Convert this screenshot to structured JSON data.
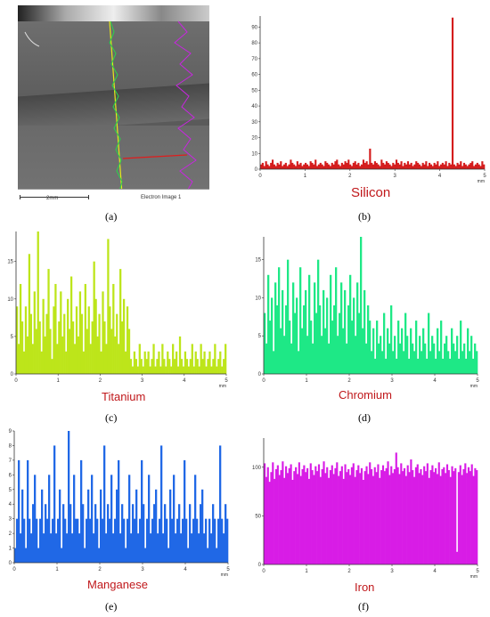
{
  "panels": {
    "a": {
      "caption": "(a)",
      "scale_label": "2mm",
      "image_label": "Electron Image 1"
    },
    "b": {
      "caption": "(b)",
      "element": "Silicon"
    },
    "c": {
      "caption": "(c)",
      "element": "Titanium"
    },
    "d": {
      "caption": "(d)",
      "element": "Chromium"
    },
    "e": {
      "caption": "(e)",
      "element": "Manganese"
    },
    "f": {
      "caption": "(f)",
      "element": "Iron"
    }
  },
  "chart_data": [
    {
      "id": "b",
      "type": "bar",
      "xlabel": "mm",
      "color": "#d41c1c",
      "xlim": [
        0,
        5
      ],
      "ylim": [
        0,
        97
      ],
      "xticks": [
        0,
        1,
        2,
        3,
        4,
        5
      ],
      "yticks": [
        0,
        10,
        20,
        30,
        40,
        50,
        60,
        70,
        80,
        90
      ],
      "values": [
        3,
        4,
        2,
        5,
        3,
        2,
        4,
        6,
        3,
        2,
        4,
        3,
        5,
        2,
        3,
        4,
        2,
        3,
        6,
        4,
        3,
        2,
        5,
        3,
        4,
        2,
        3,
        4,
        3,
        2,
        5,
        4,
        3,
        6,
        2,
        3,
        4,
        3,
        2,
        5,
        4,
        3,
        2,
        4,
        3,
        5,
        6,
        3,
        2,
        4,
        3,
        5,
        4,
        6,
        3,
        2,
        4,
        5,
        3,
        4,
        2,
        3,
        6,
        4,
        5,
        3,
        13,
        4,
        3,
        5,
        4,
        3,
        2,
        6,
        4,
        3,
        5,
        4,
        3,
        2,
        4,
        3,
        6,
        4,
        3,
        5,
        2,
        4,
        3,
        5,
        3,
        4,
        2,
        3,
        5,
        4,
        3,
        2,
        4,
        3,
        5,
        2,
        4,
        3,
        2,
        4,
        3,
        5,
        2,
        3,
        4,
        3,
        5,
        2,
        4,
        3,
        96,
        3,
        2,
        4,
        3,
        5,
        2,
        4,
        3,
        2,
        3,
        4,
        5,
        2,
        3,
        4,
        3,
        2,
        5,
        3
      ]
    },
    {
      "id": "c",
      "type": "bar",
      "xlabel": "mm",
      "color": "#bde51a",
      "xlim": [
        0,
        5
      ],
      "ylim": [
        0,
        19
      ],
      "xticks": [
        0,
        1,
        2,
        3,
        4,
        5
      ],
      "yticks": [
        0,
        5,
        10,
        15
      ],
      "values": [
        9,
        4,
        12,
        7,
        3,
        9,
        5,
        16,
        8,
        4,
        11,
        6,
        19,
        7,
        3,
        10,
        5,
        8,
        14,
        6,
        2,
        9,
        12,
        4,
        7,
        11,
        5,
        8,
        3,
        10,
        6,
        13,
        7,
        4,
        9,
        5,
        11,
        8,
        3,
        12,
        6,
        9,
        4,
        7,
        15,
        10,
        5,
        8,
        3,
        11,
        7,
        4,
        18,
        9,
        6,
        12,
        5,
        8,
        4,
        14,
        7,
        10,
        3,
        9,
        6,
        2,
        1,
        3,
        2,
        1,
        4,
        2,
        1,
        3,
        2,
        3,
        1,
        2,
        4,
        1,
        2,
        3,
        1,
        4,
        2,
        1,
        3,
        2,
        1,
        4,
        2,
        3,
        1,
        5,
        2,
        1,
        3,
        2,
        1,
        2,
        4,
        1,
        3,
        2,
        1,
        4,
        2,
        3,
        1,
        2,
        3,
        1,
        2,
        4,
        1,
        2,
        3,
        1,
        2,
        4
      ]
    },
    {
      "id": "d",
      "type": "bar",
      "xlabel": "mm",
      "color": "#1ee886",
      "xlim": [
        0,
        5
      ],
      "ylim": [
        0,
        18
      ],
      "xticks": [
        0,
        1,
        2,
        3,
        4,
        5
      ],
      "yticks": [
        0,
        5,
        10,
        15
      ],
      "values": [
        8,
        4,
        13,
        7,
        10,
        3,
        12,
        9,
        14,
        6,
        11,
        5,
        9,
        15,
        7,
        4,
        12,
        8,
        10,
        3,
        14,
        6,
        9,
        11,
        5,
        13,
        7,
        4,
        12,
        8,
        15,
        9,
        5,
        11,
        6,
        10,
        4,
        13,
        7,
        9,
        14,
        5,
        8,
        12,
        6,
        11,
        4,
        9,
        13,
        7,
        10,
        5,
        12,
        8,
        18,
        6,
        11,
        4,
        9,
        7,
        3,
        6,
        2,
        7,
        4,
        5,
        3,
        8,
        2,
        6,
        4,
        9,
        3,
        5,
        2,
        7,
        4,
        6,
        3,
        8,
        5,
        2,
        6,
        4,
        3,
        7,
        2,
        5,
        3,
        6,
        4,
        2,
        8,
        3,
        5,
        4,
        2,
        6,
        3,
        7,
        2,
        4,
        5,
        3,
        2,
        6,
        4,
        3,
        5,
        2,
        7,
        3,
        4,
        2,
        6,
        3,
        5,
        2,
        4,
        3
      ]
    },
    {
      "id": "e",
      "type": "bar",
      "xlabel": "mm",
      "color": "#2068e6",
      "xlim": [
        0,
        5
      ],
      "ylim": [
        0,
        9
      ],
      "xticks": [
        0,
        1,
        2,
        3,
        4,
        5
      ],
      "yticks": [
        0,
        1,
        2,
        3,
        4,
        5,
        6,
        7,
        8,
        9
      ],
      "values": [
        1,
        3,
        7,
        2,
        5,
        3,
        1,
        7,
        3,
        2,
        4,
        6,
        3,
        1,
        3,
        5,
        2,
        4,
        3,
        6,
        2,
        3,
        8,
        2,
        3,
        5,
        1,
        4,
        3,
        2,
        9,
        4,
        2,
        6,
        3,
        3,
        2,
        7,
        4,
        1,
        3,
        5,
        3,
        6,
        2,
        4,
        3,
        1,
        5,
        3,
        8,
        2,
        4,
        3,
        6,
        2,
        3,
        5,
        7,
        2,
        4,
        3,
        1,
        3,
        6,
        2,
        4,
        3,
        5,
        2,
        3,
        7,
        4,
        1,
        3,
        6,
        2,
        3,
        4,
        5,
        2,
        3,
        8,
        2,
        4,
        3,
        1,
        5,
        3,
        6,
        2,
        3,
        4,
        2,
        3,
        7,
        3,
        1,
        4,
        2,
        3,
        6,
        3,
        2,
        4,
        5,
        2,
        3,
        1,
        3,
        2,
        4,
        3,
        1,
        3,
        8,
        3,
        2,
        4,
        3
      ]
    },
    {
      "id": "f",
      "type": "bar",
      "xlabel": "mm",
      "color": "#d81ce6",
      "xlim": [
        0,
        5
      ],
      "ylim": [
        0,
        130
      ],
      "xticks": [
        0,
        1,
        2,
        3,
        4,
        5
      ],
      "yticks": [
        0,
        50,
        100
      ],
      "values": [
        104,
        90,
        100,
        85,
        95,
        105,
        88,
        98,
        102,
        92,
        97,
        106,
        89,
        101,
        94,
        99,
        103,
        87,
        96,
        100,
        93,
        105,
        91,
        98,
        102,
        95,
        99,
        88,
        104,
        97,
        92,
        101,
        96,
        103,
        90,
        98,
        106,
        94,
        100,
        89,
        97,
        102,
        93,
        99,
        105,
        91,
        96,
        101,
        88,
        103,
        95,
        98,
        92,
        100,
        104,
        90,
        97,
        102,
        94,
        99,
        87,
        96,
        101,
        93,
        105,
        98,
        91,
        100,
        95,
        103,
        89,
        97,
        102,
        96,
        99,
        106,
        92,
        101,
        94,
        98,
        115,
        100,
        93,
        104,
        96,
        99,
        91,
        102,
        95,
        108,
        97,
        90,
        100,
        103,
        94,
        98,
        92,
        101,
        96,
        104,
        89,
        97,
        102,
        95,
        99,
        93,
        105,
        91,
        98,
        100,
        94,
        103,
        97,
        90,
        101,
        96,
        99,
        13,
        95,
        102,
        92,
        98,
        104,
        94,
        100,
        96,
        103,
        91,
        99,
        97
      ]
    }
  ]
}
